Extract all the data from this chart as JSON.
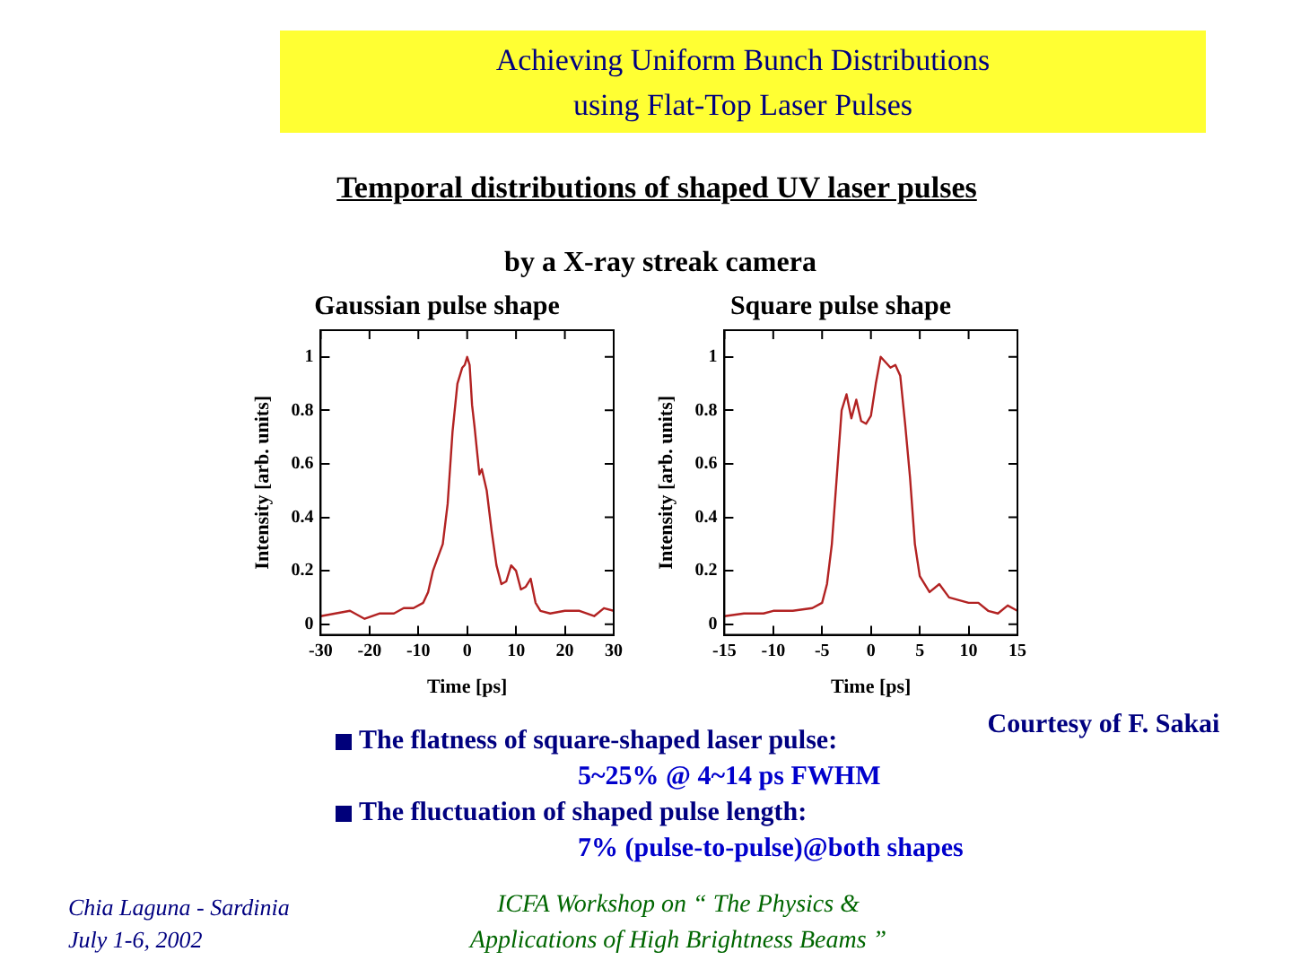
{
  "chart_data": [
    {
      "type": "line",
      "title": "Gaussian pulse shape",
      "xlabel": "Time [ps]",
      "ylabel": "Intensity [arb. units]",
      "x": [
        -30,
        -27,
        -24,
        -21,
        -18,
        -15,
        -13,
        -11,
        -9,
        -8,
        -7,
        -6,
        -5,
        -4,
        -3,
        -2,
        -1,
        -0.5,
        0,
        0.5,
        1,
        1.5,
        2.5,
        3,
        4,
        5,
        6,
        7,
        8,
        9,
        10,
        11,
        12,
        13,
        14,
        15,
        17,
        20,
        23,
        26,
        28,
        30
      ],
      "series": [
        {
          "color": "#b22222",
          "values": [
            0.03,
            0.04,
            0.05,
            0.02,
            0.04,
            0.04,
            0.06,
            0.06,
            0.08,
            0.12,
            0.2,
            0.25,
            0.3,
            0.45,
            0.72,
            0.9,
            0.96,
            0.97,
            1.0,
            0.97,
            0.82,
            0.74,
            0.56,
            0.58,
            0.5,
            0.35,
            0.22,
            0.15,
            0.16,
            0.22,
            0.2,
            0.13,
            0.14,
            0.17,
            0.08,
            0.05,
            0.04,
            0.05,
            0.05,
            0.03,
            0.06,
            0.05
          ]
        }
      ],
      "xlim": [
        -30,
        30
      ],
      "xticks": [
        -30,
        -20,
        -10,
        0,
        10,
        20,
        30
      ],
      "ylim": [
        -0.04,
        1.1
      ],
      "yticks": [
        0,
        0.2,
        0.4,
        0.6,
        0.8,
        1
      ],
      "grid": false,
      "legend": false,
      "marker": "none",
      "line_style": "solid",
      "annotations": [
        "Achieving Uniform Bunch Distributions",
        "using Flat-Top Laser Pulses",
        "Temporal distributions of shaped UV laser pulses",
        "by a X-ray streak camera",
        "Courtesy of F. Sakai",
        "The flatness of square-shaped laser pulse:",
        "5~25% @ 4~14 ps FWHM",
        "The fluctuation of shaped pulse length:",
        "7% (pulse-to-pulse)@both shapes",
        "Chia Laguna - Sardinia",
        "July 1-6,  2002",
        "ICFA Workshop on “ The Physics &",
        "Applications of High Brightness Beams ”"
      ]
    },
    {
      "type": "line",
      "title": "Square pulse shape",
      "xlabel": "Time [ps]",
      "ylabel": "Intensity [arb. units]",
      "x": [
        -15,
        -13,
        -11,
        -10,
        -8,
        -6,
        -5,
        -4.5,
        -4,
        -3.5,
        -3,
        -2.5,
        -2,
        -1.5,
        -1,
        -0.5,
        0,
        0.5,
        1,
        1.5,
        2,
        2.5,
        3,
        3.5,
        4,
        4.5,
        5,
        6,
        7,
        8,
        9,
        10,
        11,
        12,
        13,
        14,
        15
      ],
      "series": [
        {
          "color": "#b22222",
          "values": [
            0.03,
            0.04,
            0.04,
            0.05,
            0.05,
            0.06,
            0.08,
            0.15,
            0.3,
            0.55,
            0.8,
            0.86,
            0.77,
            0.84,
            0.76,
            0.75,
            0.78,
            0.9,
            1.0,
            0.98,
            0.96,
            0.97,
            0.93,
            0.75,
            0.55,
            0.3,
            0.18,
            0.12,
            0.15,
            0.1,
            0.09,
            0.08,
            0.08,
            0.05,
            0.04,
            0.07,
            0.05
          ]
        }
      ],
      "xlim": [
        -15,
        15
      ],
      "xticks": [
        -15,
        -10,
        -5,
        0,
        5,
        10,
        15
      ],
      "ylim": [
        -0.04,
        1.1
      ],
      "yticks": [
        0,
        0.2,
        0.4,
        0.6,
        0.8,
        1
      ],
      "grid": false,
      "legend": false,
      "marker": "none",
      "line_style": "solid"
    }
  ]
}
